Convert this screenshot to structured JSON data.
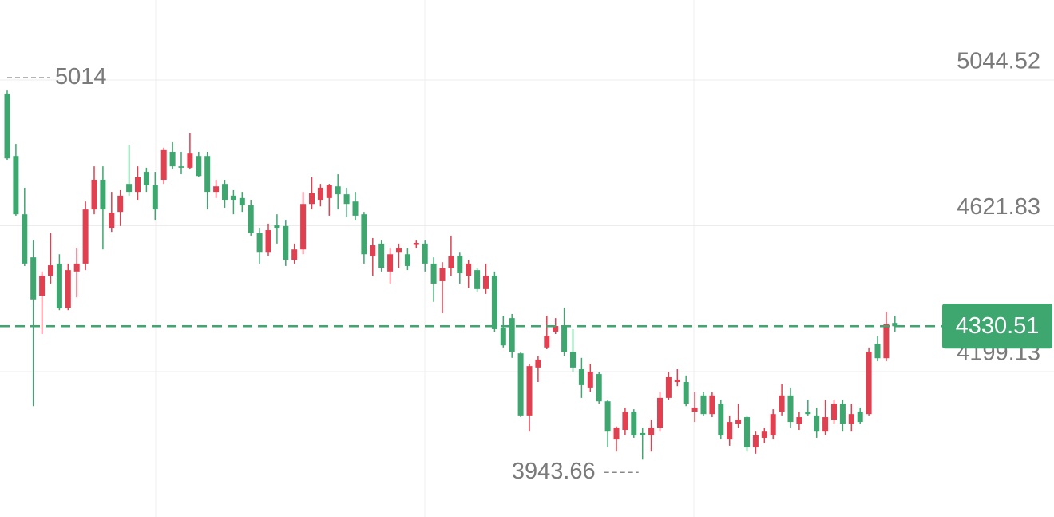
{
  "chart_data": {
    "type": "candlestick",
    "up_color": "#e0404f",
    "down_color": "#3ea66f",
    "ylim": [
      3777.6,
      5276.1
    ],
    "yticks": [
      5044.52,
      4621.83,
      4199.13
    ],
    "grid": true,
    "candles": [
      [
        5003,
        5014,
        4813,
        4817
      ],
      [
        4824,
        4859,
        4651,
        4655
      ],
      [
        4655,
        4732,
        4505,
        4512
      ],
      [
        4530,
        4581,
        4099,
        4408
      ],
      [
        4419,
        4489,
        4308,
        4477
      ],
      [
        4477,
        4600,
        4454,
        4507
      ],
      [
        4512,
        4539,
        4377,
        4382
      ],
      [
        4384,
        4512,
        4377,
        4493
      ],
      [
        4489,
        4558,
        4414,
        4512
      ],
      [
        4512,
        4692,
        4493,
        4669
      ],
      [
        4669,
        4794,
        4655,
        4755
      ],
      [
        4755,
        4794,
        4553,
        4669
      ],
      [
        4616,
        4720,
        4604,
        4660
      ],
      [
        4662,
        4725,
        4621,
        4709
      ],
      [
        4743,
        4855,
        4709,
        4720
      ],
      [
        4720,
        4794,
        4697,
        4762
      ],
      [
        4778,
        4790,
        4720,
        4739
      ],
      [
        4739,
        4778,
        4639,
        4669
      ],
      [
        4755,
        4848,
        4743,
        4841
      ],
      [
        4836,
        4864,
        4785,
        4794
      ],
      [
        4794,
        4836,
        4771,
        4790
      ],
      [
        4790,
        4891.67,
        4785,
        4831
      ],
      [
        4824,
        4836,
        4762,
        4766
      ],
      [
        4824,
        4836,
        4669,
        4720
      ],
      [
        4720,
        4755,
        4702,
        4736
      ],
      [
        4743,
        4755,
        4674,
        4697
      ],
      [
        4709,
        4725,
        4655,
        4697
      ],
      [
        4702,
        4720,
        4662,
        4681
      ],
      [
        4681,
        4697,
        4593,
        4600
      ],
      [
        4600,
        4616,
        4512,
        4546
      ],
      [
        4546,
        4628,
        4535,
        4609
      ],
      [
        4623,
        4655,
        4570,
        4616
      ],
      [
        4621,
        4639,
        4505,
        4523
      ],
      [
        4523,
        4570,
        4512,
        4553
      ],
      [
        4553,
        4720,
        4539,
        4685
      ],
      [
        4685,
        4762,
        4669,
        4716
      ],
      [
        4697,
        4743,
        4678,
        4732
      ],
      [
        4702,
        4743,
        4651,
        4739
      ],
      [
        4736,
        4771,
        4669,
        4713
      ],
      [
        4713,
        4732,
        4646,
        4685
      ],
      [
        4692,
        4720,
        4639,
        4651
      ],
      [
        4655,
        4662,
        4512,
        4539
      ],
      [
        4535,
        4586,
        4477,
        4565
      ],
      [
        4570,
        4581,
        4489,
        4500
      ],
      [
        4489,
        4558,
        4454,
        4539
      ],
      [
        4546,
        4570,
        4500,
        4558
      ],
      [
        4539,
        4558,
        4493,
        4505
      ],
      [
        4570,
        4581,
        4558,
        4572
      ],
      [
        4570,
        4581,
        4489,
        4512
      ],
      [
        4512,
        4530,
        4401,
        4454
      ],
      [
        4461,
        4516,
        4368,
        4498
      ],
      [
        4498,
        4593,
        4477,
        4535
      ],
      [
        4535,
        4546,
        4454,
        4484
      ],
      [
        4477,
        4523,
        4442,
        4512
      ],
      [
        4493,
        4500,
        4431,
        4438
      ],
      [
        4438,
        4512,
        4424,
        4477
      ],
      [
        4477,
        4489,
        4315,
        4322
      ],
      [
        4326,
        4361,
        4269,
        4275
      ],
      [
        4354,
        4366,
        4239,
        4257
      ],
      [
        4252,
        4257,
        4067,
        4072
      ],
      [
        4072,
        4222,
        4025,
        4215
      ],
      [
        4211,
        4245,
        4169,
        4234
      ],
      [
        4269,
        4361,
        4264,
        4303
      ],
      [
        4315,
        4354,
        4308,
        4331
      ],
      [
        4331,
        4384,
        4245,
        4257
      ],
      [
        4257,
        4322,
        4199,
        4211
      ],
      [
        4206,
        4239,
        4123,
        4160
      ],
      [
        4153,
        4222,
        4141,
        4199
      ],
      [
        4192,
        4199,
        4106,
        4113
      ],
      [
        4113,
        4118,
        3979,
        4025
      ],
      [
        4002,
        4040,
        3967,
        4037
      ],
      [
        4030,
        4095,
        4014,
        4083
      ],
      [
        4083,
        4090,
        4007,
        4014
      ],
      [
        4021,
        4037,
        3943.66,
        4014
      ],
      [
        4014,
        4060,
        3967,
        4037
      ],
      [
        4037,
        4141,
        4025,
        4123
      ],
      [
        4123,
        4199,
        4118,
        4183
      ],
      [
        4169,
        4206,
        4157,
        4176
      ],
      [
        4169,
        4188,
        4099,
        4106
      ],
      [
        4083,
        4141,
        4053,
        4095
      ],
      [
        4130,
        4141,
        4072,
        4076
      ],
      [
        4076,
        4141,
        4067,
        4130
      ],
      [
        4106,
        4118,
        4002,
        4014
      ],
      [
        4002,
        4072,
        3984,
        4053
      ],
      [
        4048,
        4106,
        4037,
        4060
      ],
      [
        4067,
        4072,
        3967,
        3979
      ],
      [
        3979,
        4025,
        3961,
        4014
      ],
      [
        4007,
        4037,
        3991,
        4025
      ],
      [
        4014,
        4090,
        4002,
        4076
      ],
      [
        4083,
        4164,
        4072,
        4130
      ],
      [
        4130,
        4153,
        4037,
        4053
      ],
      [
        4048,
        4083,
        4030,
        4067
      ],
      [
        4083,
        4118,
        4072,
        4076
      ],
      [
        4072,
        4095,
        4007,
        4025
      ],
      [
        4025,
        4118,
        4014,
        4067
      ],
      [
        4060,
        4118,
        4048,
        4106
      ],
      [
        4106,
        4118,
        4025,
        4048
      ],
      [
        4048,
        4106,
        4025,
        4076
      ],
      [
        4083,
        4095,
        4048,
        4053
      ],
      [
        4076,
        4269,
        4072,
        4257
      ],
      [
        4280,
        4303,
        4229,
        4238
      ],
      [
        4238,
        4373,
        4229,
        4338
      ],
      [
        4340,
        4361,
        4315,
        4330.51
      ]
    ]
  }
}
